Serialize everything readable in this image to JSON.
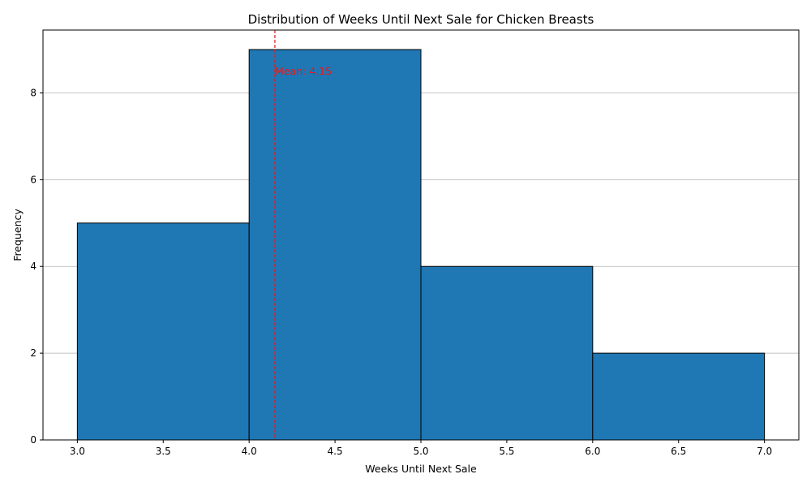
{
  "chart_data": {
    "type": "bar",
    "subtype": "histogram",
    "title": "Distribution of Weeks Until Next Sale for Chicken Breasts",
    "xlabel": "Weeks Until Next Sale",
    "ylabel": "Frequency",
    "xlim": [
      2.8,
      7.2
    ],
    "ylim": [
      0,
      9.45
    ],
    "bins": [
      {
        "start": 3,
        "end": 4,
        "count": 5
      },
      {
        "start": 4,
        "end": 5,
        "count": 9
      },
      {
        "start": 5,
        "end": 6,
        "count": 4
      },
      {
        "start": 6,
        "end": 7,
        "count": 2
      }
    ],
    "x_ticks": [
      3.0,
      3.5,
      4.0,
      4.5,
      5.0,
      5.5,
      6.0,
      6.5,
      7.0
    ],
    "x_tick_labels": [
      "3.0",
      "3.5",
      "4.0",
      "4.5",
      "5.0",
      "5.5",
      "6.0",
      "6.5",
      "7.0"
    ],
    "y_ticks": [
      0,
      2,
      4,
      6,
      8
    ],
    "y_tick_labels": [
      "0",
      "2",
      "4",
      "6",
      "8"
    ],
    "grid": "y-major",
    "bar_color": "#1f77b4",
    "bar_edge_color": "#000000",
    "mean": {
      "value": 4.15,
      "label": "Mean: 4.15",
      "color": "#e41a1c"
    }
  }
}
